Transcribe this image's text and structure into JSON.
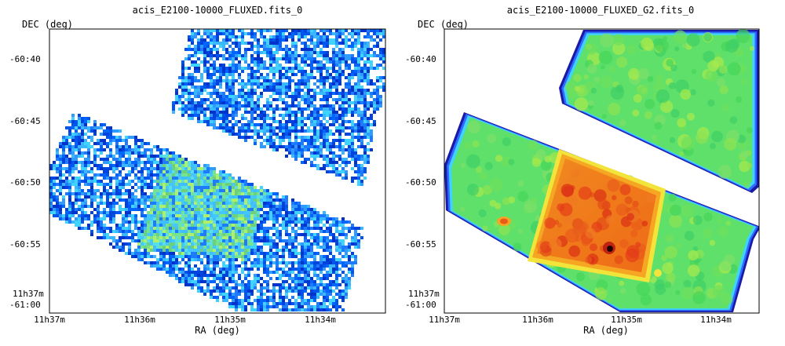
{
  "panels": [
    {
      "title": "acis_E2100-10000_FLUXED.fits_0",
      "ylabel": "DEC (deg)",
      "xlabel": "RA (deg)",
      "y_ticks": [
        "-60:40",
        "-60:45",
        "-60:50",
        "-60:55",
        "-61:00"
      ],
      "y_bottom_extra": "11h37m",
      "x_ticks": [
        "11h37m",
        "11h36m",
        "11h35m",
        "11h34m"
      ],
      "style": "noisy"
    },
    {
      "title": "acis_E2100-10000_FLUXED_G2.fits_0",
      "ylabel": "DEC (deg)",
      "xlabel": "RA (deg)",
      "y_ticks": [
        "-60:40",
        "-60:45",
        "-60:50",
        "-60:55",
        "-61:00"
      ],
      "y_bottom_extra": "11h37m",
      "x_ticks": [
        "11h37m",
        "11h36m",
        "11h35m",
        "11h34m"
      ],
      "style": "smoothed"
    }
  ]
}
